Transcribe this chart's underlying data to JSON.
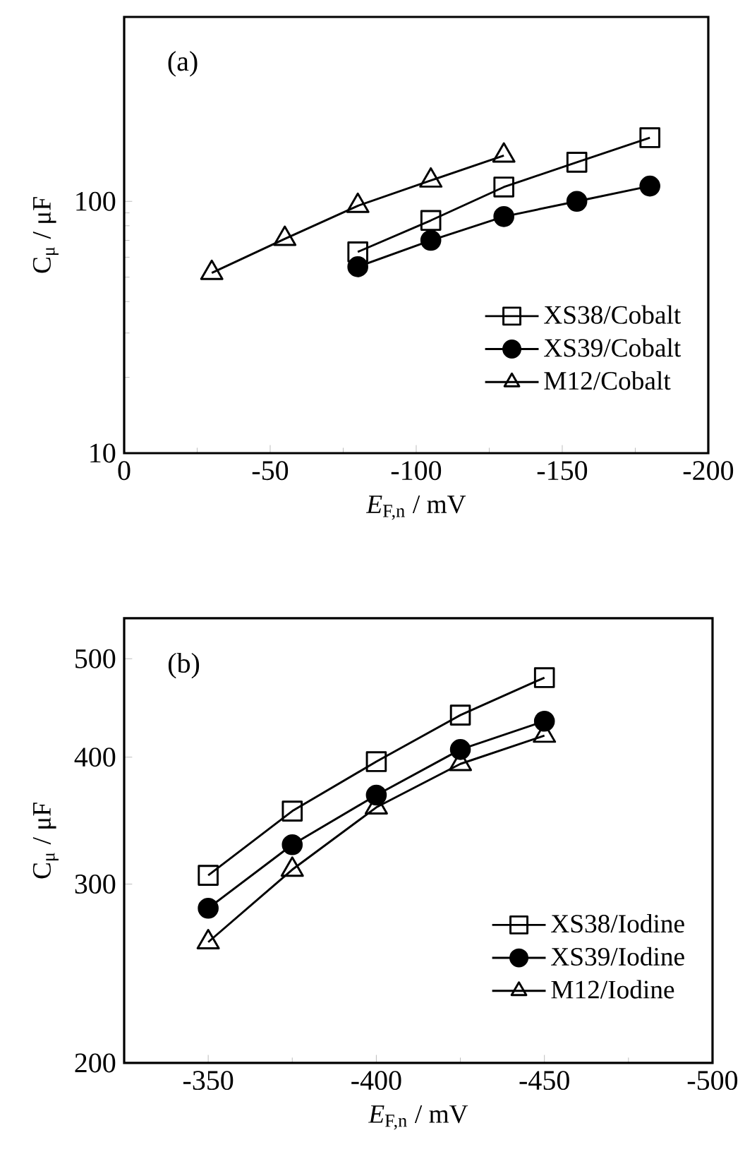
{
  "chart_data": [
    {
      "type": "line",
      "xlabel": "*E*$_{F,n}$ / mV",
      "ylabel": "C$_{μ}$ / μF",
      "annotations": [
        "(a)"
      ],
      "log": true,
      "legend": "bottom right",
      "line_style": "solid",
      "xlim": [
        0,
        -200
      ],
      "xticks": [
        0,
        -50,
        -100,
        -150,
        -200
      ],
      "ylim": [
        10,
        540
      ],
      "yticks": [
        10,
        100
      ],
      "series": [
        {
          "name": "XS38/Cobalt",
          "color": "#000000",
          "marker": "square",
          "x": [
            -80,
            -105,
            -130,
            -155,
            -180
          ],
          "values": [
            63,
            84,
            114,
            143,
            179
          ]
        },
        {
          "name": "XS39/Cobalt",
          "color": "#000000",
          "marker": "circle",
          "x": [
            -80,
            -105,
            -130,
            -155,
            -180
          ],
          "values": [
            55,
            70,
            87,
            100,
            115
          ]
        },
        {
          "name": "M12/Cobalt",
          "color": "#000000",
          "marker": "triangle",
          "x": [
            -30,
            -55,
            -80,
            -105,
            -130
          ],
          "values": [
            52,
            71,
            96,
            121,
            152
          ]
        }
      ]
    },
    {
      "type": "line",
      "xlabel": "*E*$_{F,n}$ / mV",
      "ylabel": "C$_{μ}$ / μF",
      "annotations": [
        "(b)"
      ],
      "log": true,
      "legend": "bottom right",
      "line_style": "solid",
      "xlim": [
        -325,
        -500
      ],
      "xticks": [
        -350,
        -400,
        -450,
        -500
      ],
      "ylim": [
        200,
        548
      ],
      "yticks": [
        200,
        300,
        400,
        500
      ],
      "series": [
        {
          "name": "XS38/Iodine",
          "color": "#000000",
          "marker": "square",
          "x": [
            -350,
            -375,
            -400,
            -425,
            -450
          ],
          "values": [
            306,
            354,
            396,
            440,
            479
          ]
        },
        {
          "name": "XS39/Iodine",
          "color": "#000000",
          "marker": "circle",
          "x": [
            -350,
            -375,
            -400,
            -425,
            -450
          ],
          "values": [
            284,
            328,
            367,
            407,
            434
          ]
        },
        {
          "name": "M12/Iodine",
          "color": "#000000",
          "marker": "triangle",
          "x": [
            -350,
            -375,
            -400,
            -425,
            -450
          ],
          "values": [
            263,
            310,
            357,
            394,
            420
          ]
        }
      ]
    }
  ]
}
